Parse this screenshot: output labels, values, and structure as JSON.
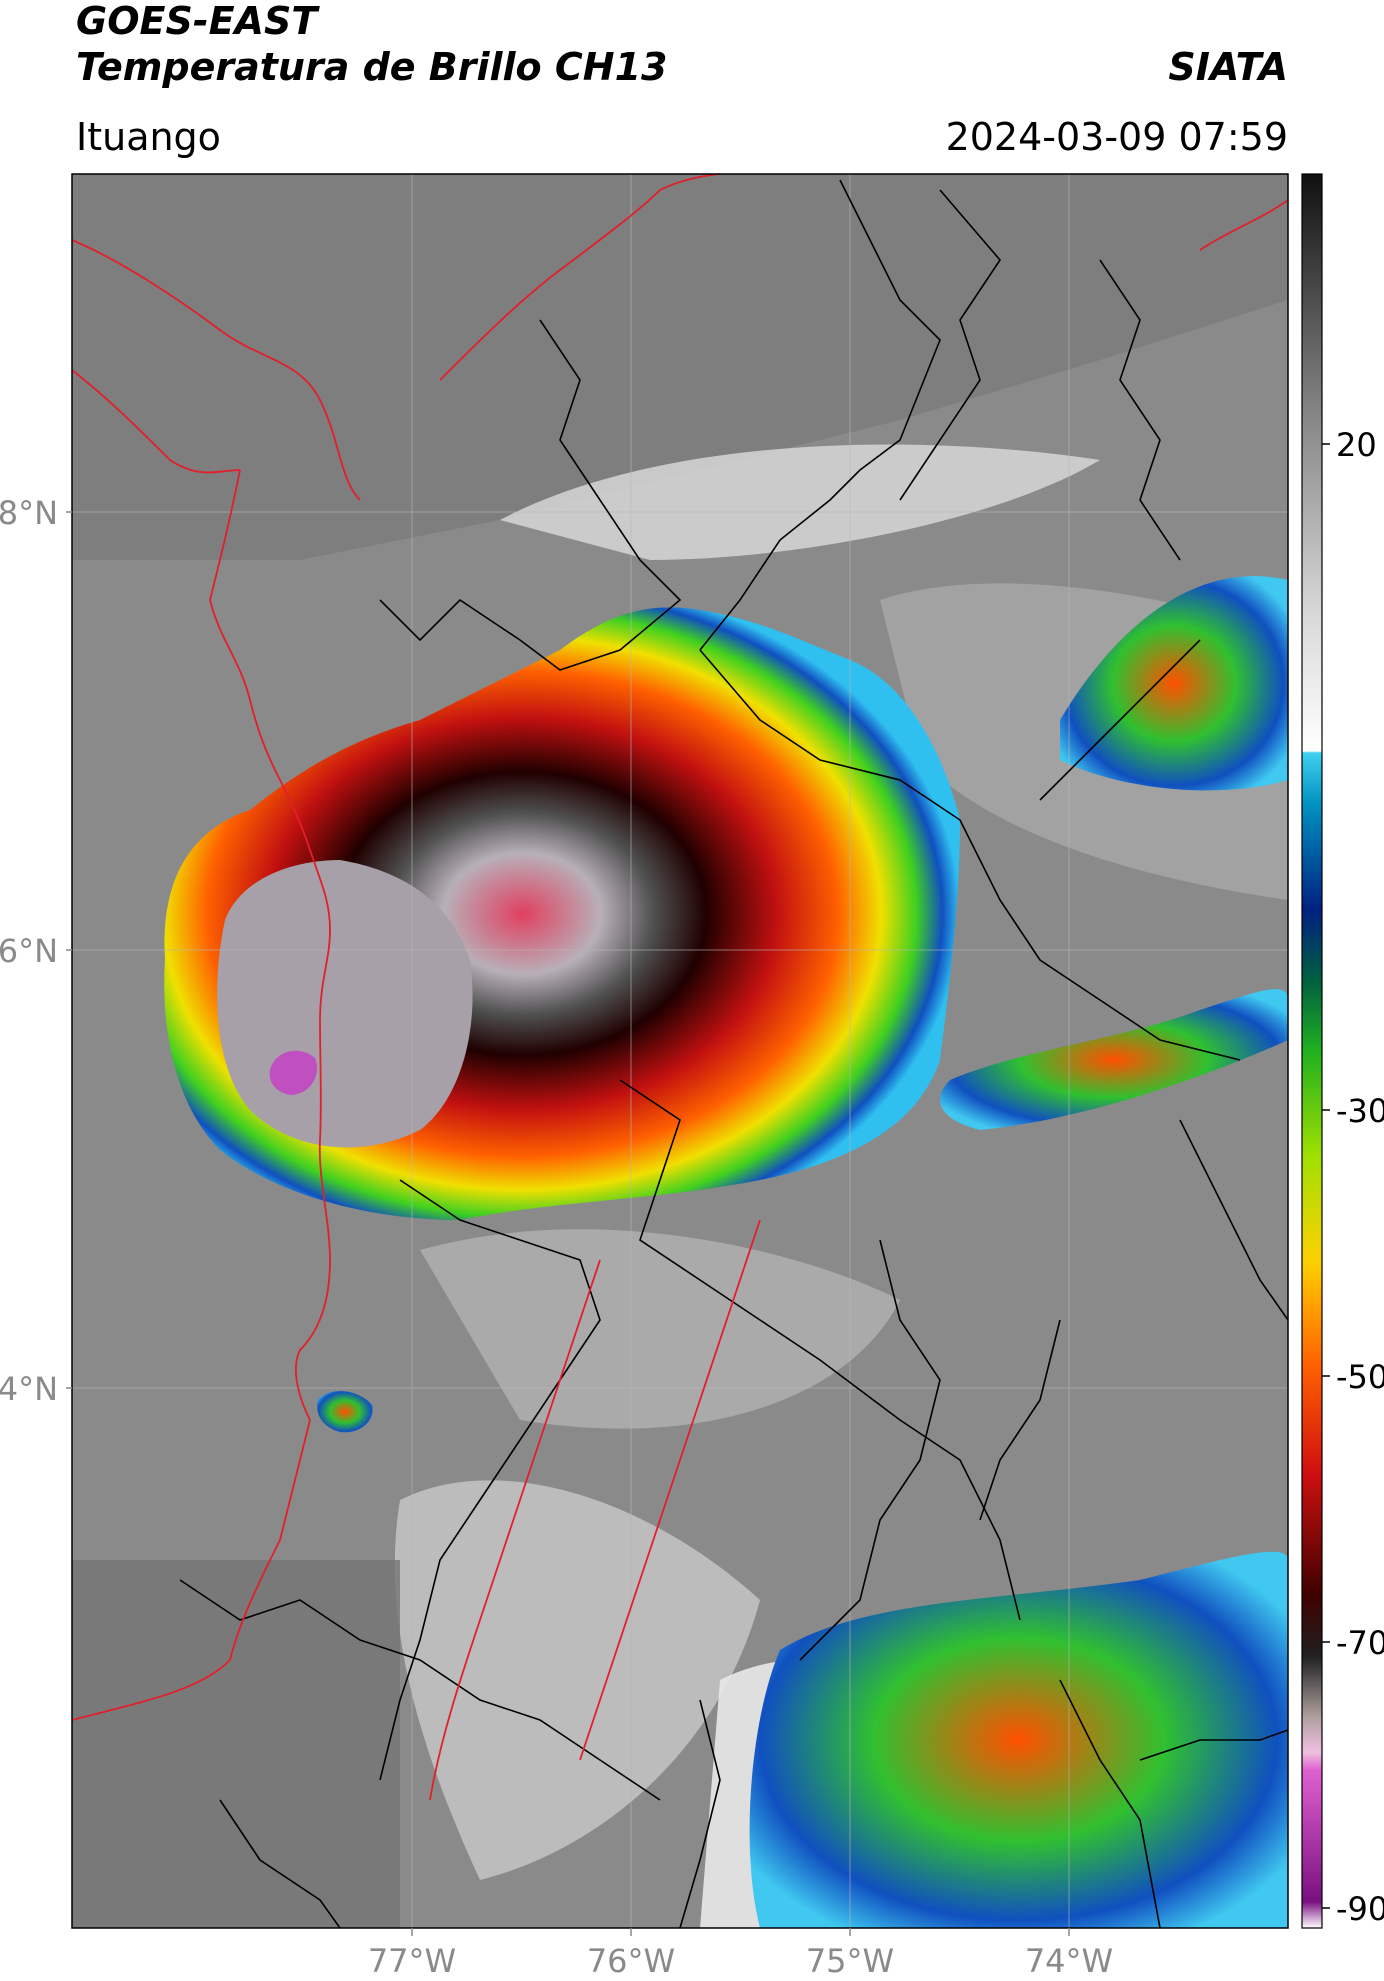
{
  "header": {
    "title_line1": "GOES-EAST",
    "title_line2": "Temperatura de Brillo CH13",
    "source": "SIATA",
    "region": "Ituango",
    "datetime": "2024-03-09 07:59"
  },
  "map": {
    "lat_labels": [
      {
        "lat": 8,
        "label": "8°N"
      },
      {
        "lat": 6,
        "label": "6°N"
      },
      {
        "lat": 4,
        "label": "4°N"
      }
    ],
    "lon_labels": [
      {
        "lon": -77,
        "label": "77°W"
      },
      {
        "lon": -76,
        "label": "76°W"
      },
      {
        "lon": -75,
        "label": "75°W"
      },
      {
        "lon": -74,
        "label": "74°W"
      }
    ],
    "colors": {
      "background_gray": "#8a8a8a",
      "boundary_black": "#000000",
      "boundary_red": "#e0202a"
    }
  },
  "colorbar": {
    "ticks": [
      {
        "value": 20,
        "label": "20"
      },
      {
        "value": -30,
        "label": "-30"
      },
      {
        "value": -50,
        "label": "-50"
      },
      {
        "value": -70,
        "label": "-70"
      },
      {
        "value": -90,
        "label": "-90"
      }
    ]
  }
}
